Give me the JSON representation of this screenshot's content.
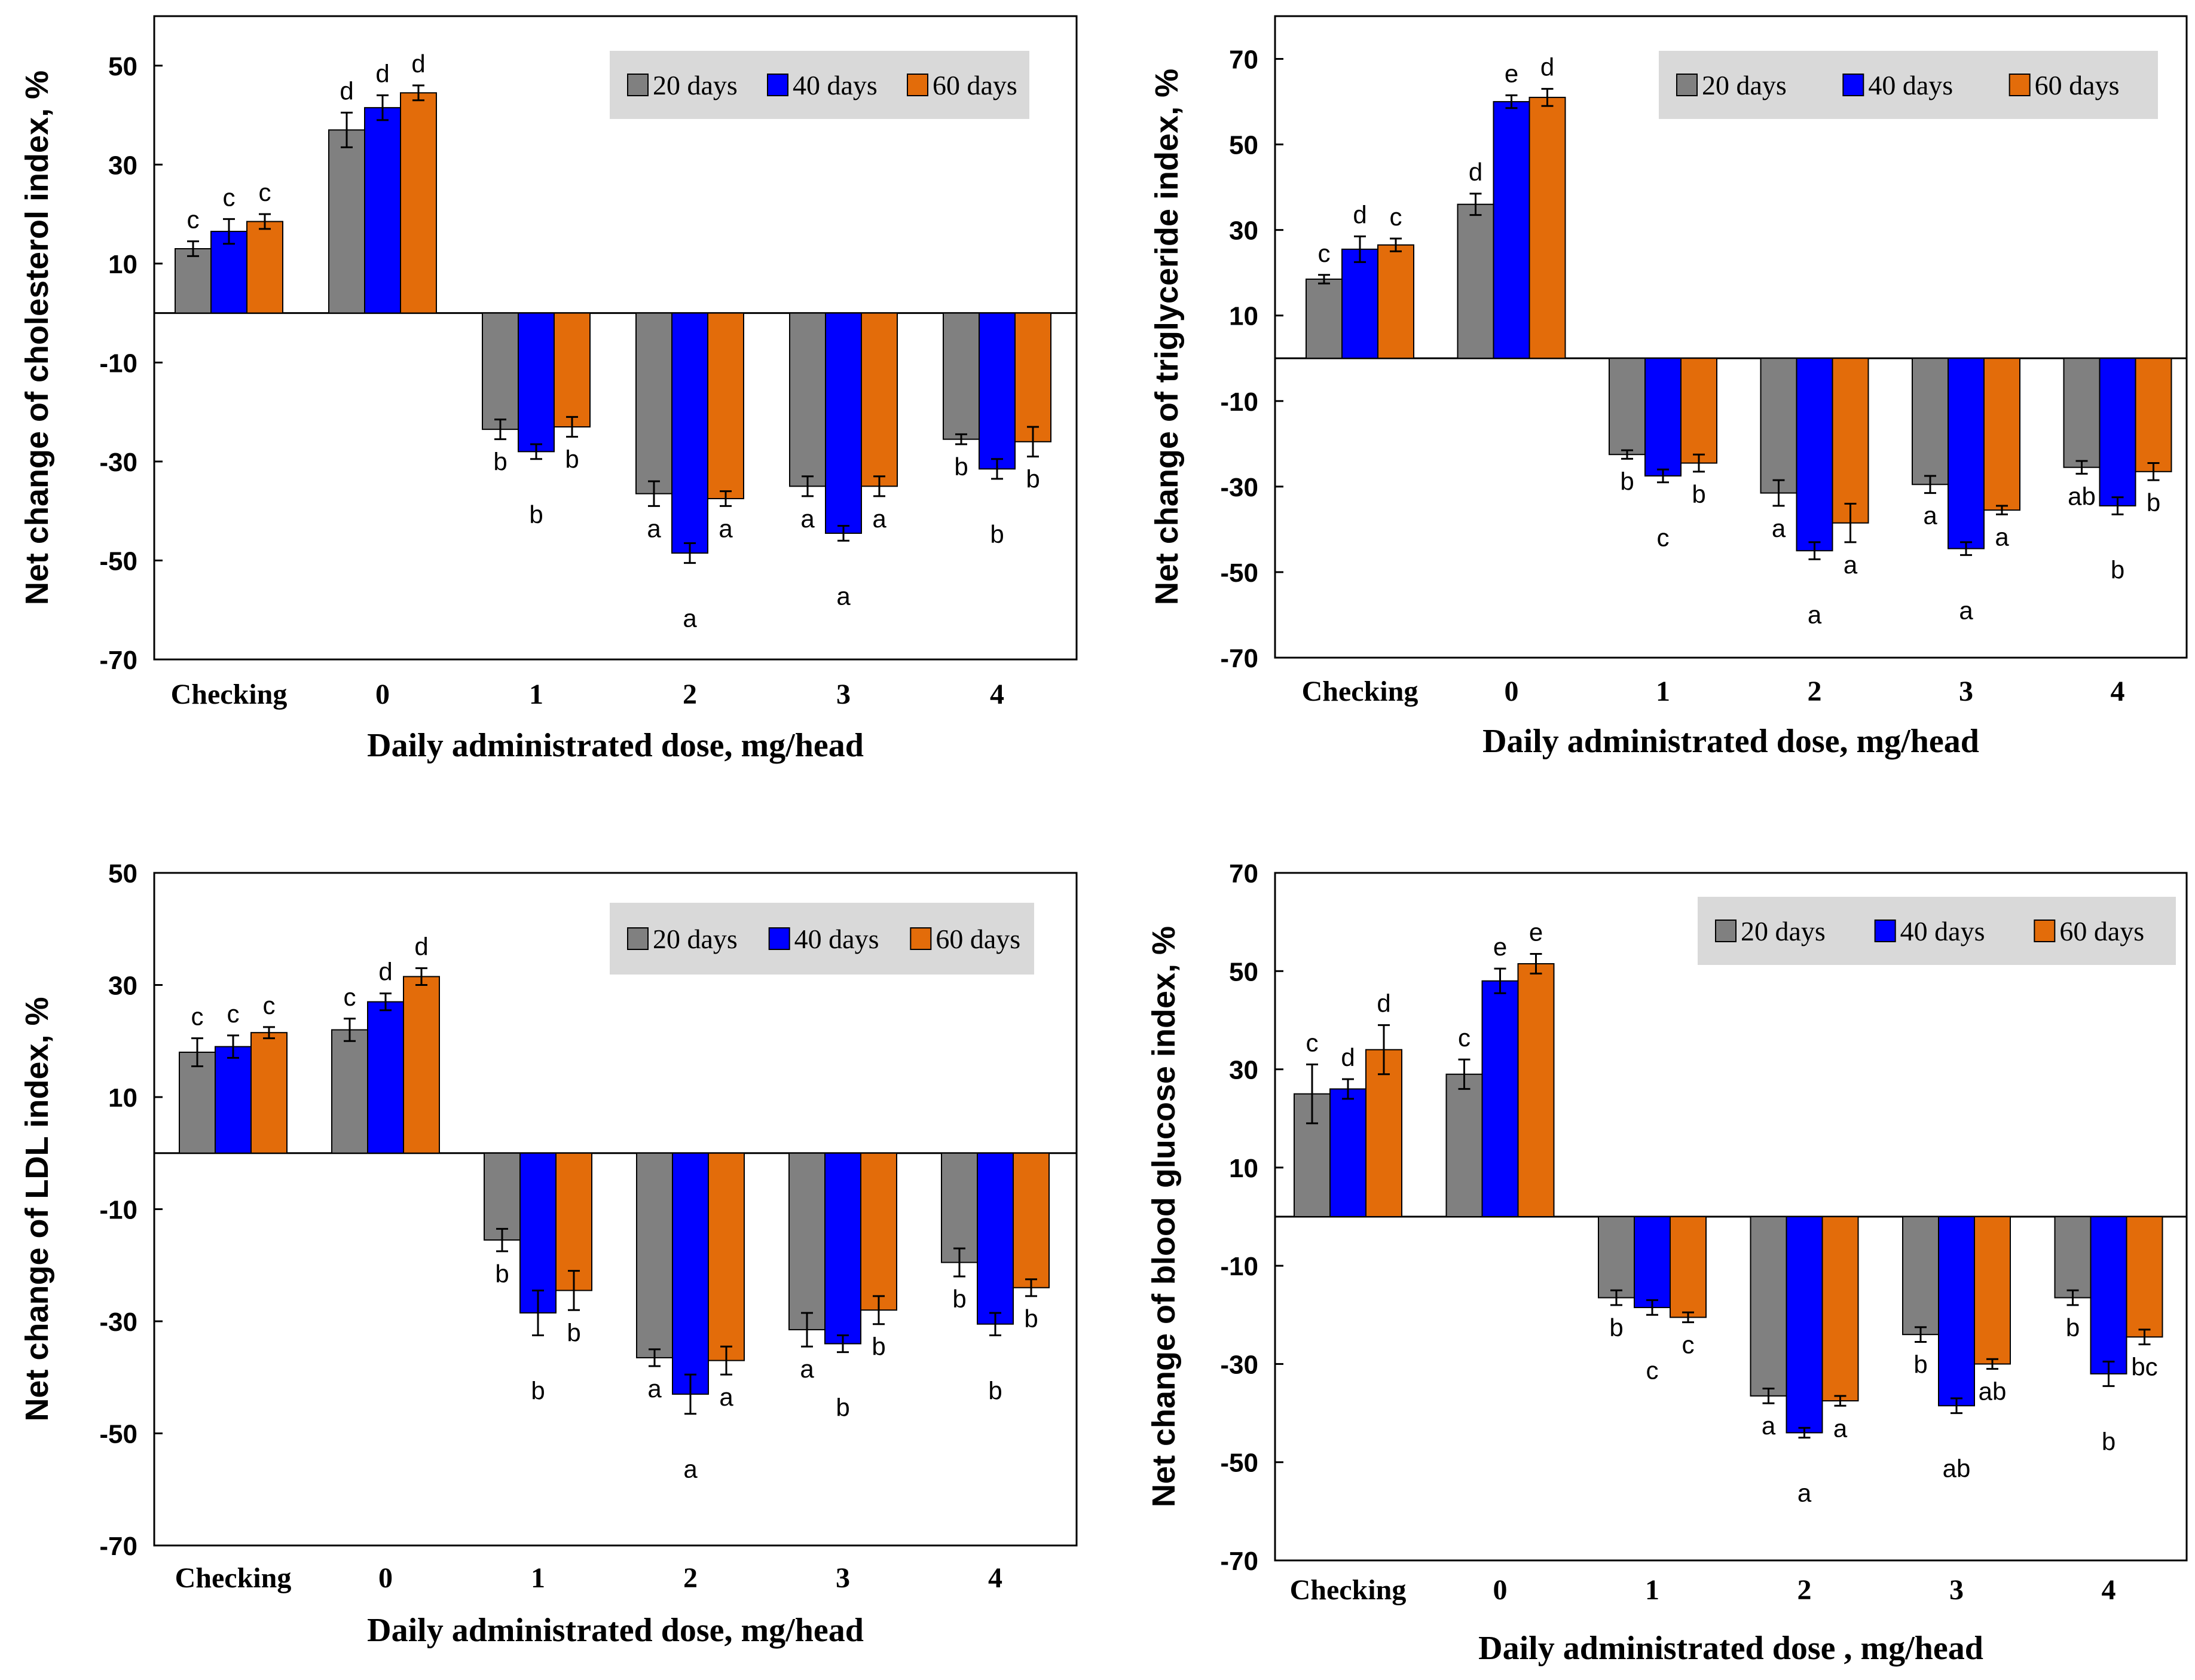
{
  "colors": {
    "d20": "#808080",
    "d40": "#0000ff",
    "d60": "#e36c0a",
    "legend_bg": "#d9d9d9",
    "axis": "#000000"
  },
  "chart_data": [
    {
      "type": "bar",
      "ylabel": "Net change of cholesterol index, %",
      "xlabel": "Daily administrated dose, mg/head",
      "categories": [
        "Checking",
        "0",
        "1",
        "2",
        "3",
        "4"
      ],
      "ylim": [
        -70,
        60
      ],
      "yticks": [
        "50",
        "30",
        "10",
        "-10",
        "-30",
        "-50",
        "-70"
      ],
      "ytick_values": [
        50,
        30,
        10,
        -10,
        -30,
        -50,
        -70
      ],
      "legend": [
        "20 days",
        "40 days",
        "60 days"
      ],
      "series": [
        {
          "name": "20 days",
          "values": [
            13,
            37,
            -23.5,
            -36.5,
            -35,
            -25.5
          ],
          "errors": [
            1.5,
            3.5,
            2,
            2.5,
            2,
            1
          ],
          "letters": [
            "c",
            "d",
            "b",
            "a",
            "a",
            "b"
          ]
        },
        {
          "name": "40 days",
          "values": [
            16.5,
            41.5,
            -28,
            -48.5,
            -44.5,
            -31.5
          ],
          "errors": [
            2.5,
            2.5,
            1.5,
            2,
            1.5,
            2
          ],
          "letters": [
            "c",
            "d",
            "b",
            "a",
            "a",
            "b"
          ]
        },
        {
          "name": "60 days",
          "values": [
            18.5,
            44.5,
            -23,
            -37.5,
            -35,
            -26
          ],
          "errors": [
            1.5,
            1.5,
            2,
            1.5,
            2,
            3
          ],
          "letters": [
            "c",
            "d",
            "b",
            "a",
            "a",
            "b"
          ]
        }
      ]
    },
    {
      "type": "bar",
      "ylabel": "Net change of triglyceride index, %",
      "xlabel": "Daily administrated dose, mg/head",
      "categories": [
        "Checking",
        "0",
        "1",
        "2",
        "3",
        "4"
      ],
      "ylim": [
        -70,
        80
      ],
      "yticks": [
        "70",
        "50",
        "30",
        "10",
        "-10",
        "-30",
        "-50",
        "-70"
      ],
      "ytick_values": [
        70,
        50,
        30,
        10,
        -10,
        -30,
        -50,
        -70
      ],
      "legend": [
        "20 days",
        "40 days",
        "60 days"
      ],
      "series": [
        {
          "name": "20 days",
          "values": [
            18.5,
            36,
            -22.5,
            -31.5,
            -29.5,
            -25.5
          ],
          "errors": [
            1,
            2.5,
            1,
            3,
            2,
            1.5
          ],
          "letters": [
            "c",
            "d",
            "b",
            "a",
            "a",
            "ab"
          ]
        },
        {
          "name": "40 days",
          "values": [
            25.5,
            60,
            -27.5,
            -45,
            -44.5,
            -34.5
          ],
          "errors": [
            3,
            1.5,
            1.5,
            2,
            1.5,
            2
          ],
          "letters": [
            "d",
            "e",
            "c",
            "a",
            "a",
            "b"
          ]
        },
        {
          "name": "60 days",
          "values": [
            26.5,
            61,
            -24.5,
            -38.5,
            -35.5,
            -26.5
          ],
          "errors": [
            1.5,
            2,
            2,
            4.5,
            1,
            2
          ],
          "letters": [
            "c",
            "d",
            "b",
            "a",
            "a",
            "b"
          ]
        }
      ]
    },
    {
      "type": "bar",
      "ylabel": "Net change of LDL index, %",
      "xlabel": "Daily administrated dose, mg/head",
      "categories": [
        "Checking",
        "0",
        "1",
        "2",
        "3",
        "4"
      ],
      "ylim": [
        -70,
        50
      ],
      "yticks": [
        "50",
        "30",
        "10",
        "-10",
        "-30",
        "-50",
        "-70"
      ],
      "ytick_values": [
        50,
        30,
        10,
        -10,
        -30,
        -50,
        -70
      ],
      "legend": [
        "20 days",
        "40 days",
        "60 days"
      ],
      "series": [
        {
          "name": "20 days",
          "values": [
            18,
            22,
            -15.5,
            -36.5,
            -31.5,
            -19.5
          ],
          "errors": [
            2.5,
            2,
            2,
            1.5,
            3,
            2.5
          ],
          "letters": [
            "c",
            "c",
            "b",
            "a",
            "a",
            "b"
          ]
        },
        {
          "name": "40 days",
          "values": [
            19,
            27,
            -28.5,
            -43,
            -34,
            -30.5
          ],
          "errors": [
            2,
            1.5,
            4,
            3.5,
            1.5,
            2
          ],
          "letters": [
            "c",
            "d",
            "b",
            "a",
            "b",
            "b"
          ]
        },
        {
          "name": "60 days",
          "values": [
            21.5,
            31.5,
            -24.5,
            -37,
            -28,
            -24
          ],
          "errors": [
            1,
            1.5,
            3.5,
            2.5,
            2.5,
            1.5
          ],
          "letters": [
            "c",
            "d",
            "b",
            "a",
            "b",
            "b"
          ]
        }
      ]
    },
    {
      "type": "bar",
      "ylabel": "Net change of blood glucose index, %",
      "xlabel": "Daily administrated dose , mg/head",
      "categories": [
        "Checking",
        "0",
        "1",
        "2",
        "3",
        "4"
      ],
      "ylim": [
        -70,
        70
      ],
      "yticks": [
        "70",
        "50",
        "30",
        "10",
        "-10",
        "-30",
        "-50",
        "-70"
      ],
      "ytick_values": [
        70,
        50,
        30,
        10,
        -10,
        -30,
        -50,
        -70
      ],
      "legend": [
        "20 days",
        "40 days",
        "60 days"
      ],
      "series": [
        {
          "name": "20 days",
          "values": [
            25,
            29,
            -16.5,
            -36.5,
            -24,
            -16.5
          ],
          "errors": [
            6,
            3,
            1.5,
            1.5,
            1.5,
            1.5
          ],
          "letters": [
            "c",
            "c",
            "b",
            "a",
            "b",
            "b"
          ]
        },
        {
          "name": "40 days",
          "values": [
            26,
            48,
            -18.5,
            -44,
            -38.5,
            -32
          ],
          "errors": [
            2,
            2.5,
            1.5,
            1,
            1.5,
            2.5
          ],
          "letters": [
            "d",
            "e",
            "c",
            "a",
            "ab",
            "b"
          ]
        },
        {
          "name": "60 days",
          "values": [
            34,
            51.5,
            -20.5,
            -37.5,
            -30,
            -24.5
          ],
          "errors": [
            5,
            2,
            1,
            1,
            1,
            1.5
          ],
          "letters": [
            "d",
            "e",
            "c",
            "a",
            "ab",
            "bc"
          ]
        }
      ]
    }
  ]
}
